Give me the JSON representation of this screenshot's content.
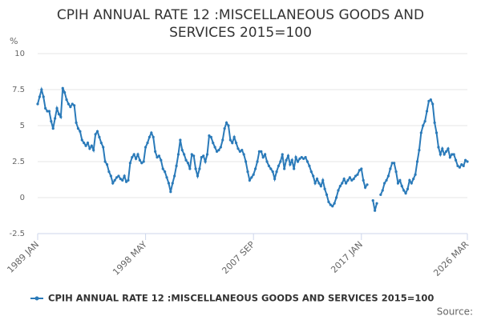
{
  "chart_data": {
    "type": "line",
    "title": "CPIH ANNUAL RATE 12 :MISCELLANEOUS GOODS AND SERVICES 2015=100",
    "y_unit": "%",
    "source": "Source:",
    "categories": [
      "1989 JAN",
      null,
      null,
      null,
      null,
      null,
      null,
      null,
      null,
      null,
      null,
      null,
      null,
      null,
      null,
      null,
      null,
      null,
      null,
      null,
      null,
      null,
      null,
      null,
      null,
      null,
      null,
      null,
      null,
      null,
      null,
      null,
      null,
      null,
      null,
      null,
      null,
      null,
      null,
      null,
      null,
      null,
      null,
      null,
      null,
      null,
      null,
      null,
      null,
      null,
      null,
      null,
      null,
      null,
      null,
      null,
      "1998 MAY",
      null,
      null,
      null,
      null,
      null,
      null,
      null,
      null,
      null,
      null,
      null,
      null,
      null,
      null,
      null,
      null,
      null,
      null,
      null,
      null,
      null,
      null,
      null,
      null,
      null,
      null,
      null,
      null,
      null,
      null,
      null,
      null,
      null,
      null,
      null,
      null,
      null,
      null,
      null,
      null,
      null,
      null,
      null,
      null,
      null,
      null,
      null,
      null,
      null,
      null,
      null,
      null,
      null,
      null,
      null,
      "2007 SEP",
      null,
      null,
      null,
      null,
      null,
      null,
      null,
      null,
      null,
      null,
      null,
      null,
      null,
      null,
      null,
      null,
      null,
      null,
      null,
      null,
      null,
      null,
      null,
      null,
      null,
      null,
      null,
      null,
      null,
      null,
      null,
      null,
      null,
      null,
      null,
      null,
      null,
      null,
      null,
      null,
      null,
      null,
      null,
      null,
      null,
      null,
      null,
      null,
      null,
      null,
      null,
      null,
      null,
      null,
      null,
      "2017 JAN",
      null,
      null,
      null,
      null,
      null,
      null,
      null,
      null,
      null,
      null,
      null,
      null,
      null,
      null,
      null,
      null,
      null,
      null,
      null,
      null,
      null,
      null,
      null,
      null,
      null,
      null,
      null,
      null,
      null,
      null,
      null,
      null,
      null,
      null,
      null,
      null,
      null,
      null,
      null,
      null,
      null,
      null,
      null,
      null,
      null,
      null,
      null,
      null,
      null,
      null,
      null,
      null,
      null,
      null,
      "2026 MAR"
    ],
    "series": [
      {
        "name": "CPIH ANNUAL RATE 12 :MISCELLANEOUS GOODS AND SERVICES 2015=100",
        "color": "#2a7ab9",
        "values": [
          6.5,
          7.0,
          7.5,
          7.0,
          6.2,
          6.0,
          6.0,
          5.3,
          4.8,
          5.5,
          6.2,
          5.8,
          5.6,
          7.6,
          7.3,
          6.8,
          6.5,
          6.3,
          6.5,
          6.4,
          5.2,
          4.8,
          4.6,
          4.0,
          3.8,
          3.6,
          3.8,
          3.4,
          3.6,
          3.3,
          4.4,
          4.6,
          4.2,
          3.8,
          3.5,
          2.5,
          2.3,
          1.8,
          1.5,
          1.0,
          1.2,
          1.4,
          1.5,
          1.3,
          1.2,
          1.5,
          1.1,
          1.2,
          2.4,
          2.8,
          3.0,
          2.7,
          3.0,
          2.6,
          2.4,
          2.5,
          3.5,
          3.8,
          4.2,
          4.5,
          4.2,
          3.2,
          2.8,
          2.9,
          2.6,
          2.0,
          1.8,
          1.4,
          1.0,
          0.4,
          1.0,
          1.5,
          2.2,
          3.0,
          4.0,
          3.3,
          3.0,
          2.6,
          2.4,
          2.0,
          3.0,
          2.9,
          2.0,
          1.5,
          2.0,
          2.8,
          2.9,
          2.5,
          3.0,
          4.3,
          4.2,
          3.8,
          3.5,
          3.2,
          3.3,
          3.5,
          4.0,
          4.8,
          5.2,
          5.0,
          4.0,
          3.8,
          4.2,
          3.8,
          3.4,
          3.2,
          3.3,
          3.0,
          2.5,
          1.8,
          1.2,
          1.4,
          1.6,
          2.0,
          2.5,
          3.2,
          3.2,
          2.8,
          3.0,
          2.5,
          2.2,
          2.0,
          1.8,
          1.3,
          1.8,
          2.2,
          2.5,
          3.0,
          2.0,
          2.6,
          2.9,
          2.3,
          2.6,
          2.0,
          2.8,
          2.5,
          2.7,
          2.8,
          2.7,
          2.8,
          2.5,
          2.2,
          1.8,
          1.5,
          1.0,
          1.3,
          1.0,
          0.8,
          1.2,
          0.6,
          0.2,
          -0.3,
          -0.5,
          -0.6,
          -0.4,
          0.0,
          0.5,
          0.8,
          1.0,
          1.3,
          1.0,
          1.2,
          1.4,
          1.2,
          1.3,
          1.5,
          1.6,
          1.9,
          2.0,
          1.2,
          0.7,
          0.9,
          null,
          null,
          -0.2,
          -0.9,
          -0.4,
          null,
          0.2,
          0.5,
          1.0,
          1.2,
          1.5,
          2.0,
          2.4,
          2.4,
          1.8,
          1.0,
          1.2,
          0.8,
          0.5,
          0.3,
          0.6,
          1.2,
          1.0,
          1.3,
          1.6,
          2.5,
          3.3,
          4.5,
          5.0,
          5.3,
          6.0,
          6.7,
          6.8,
          6.5,
          5.2,
          4.5,
          3.5,
          3.0,
          3.4,
          3.0,
          3.2,
          3.4,
          2.8,
          3.0,
          3.0,
          2.6,
          2.2,
          2.1,
          2.3,
          2.2,
          2.6,
          2.5
        ]
      }
    ],
    "ylim": [
      -2.5,
      10
    ],
    "yticks": [
      10,
      7.5,
      5,
      2.5,
      0,
      -2.5
    ],
    "grid": true,
    "legend": "bottom"
  }
}
